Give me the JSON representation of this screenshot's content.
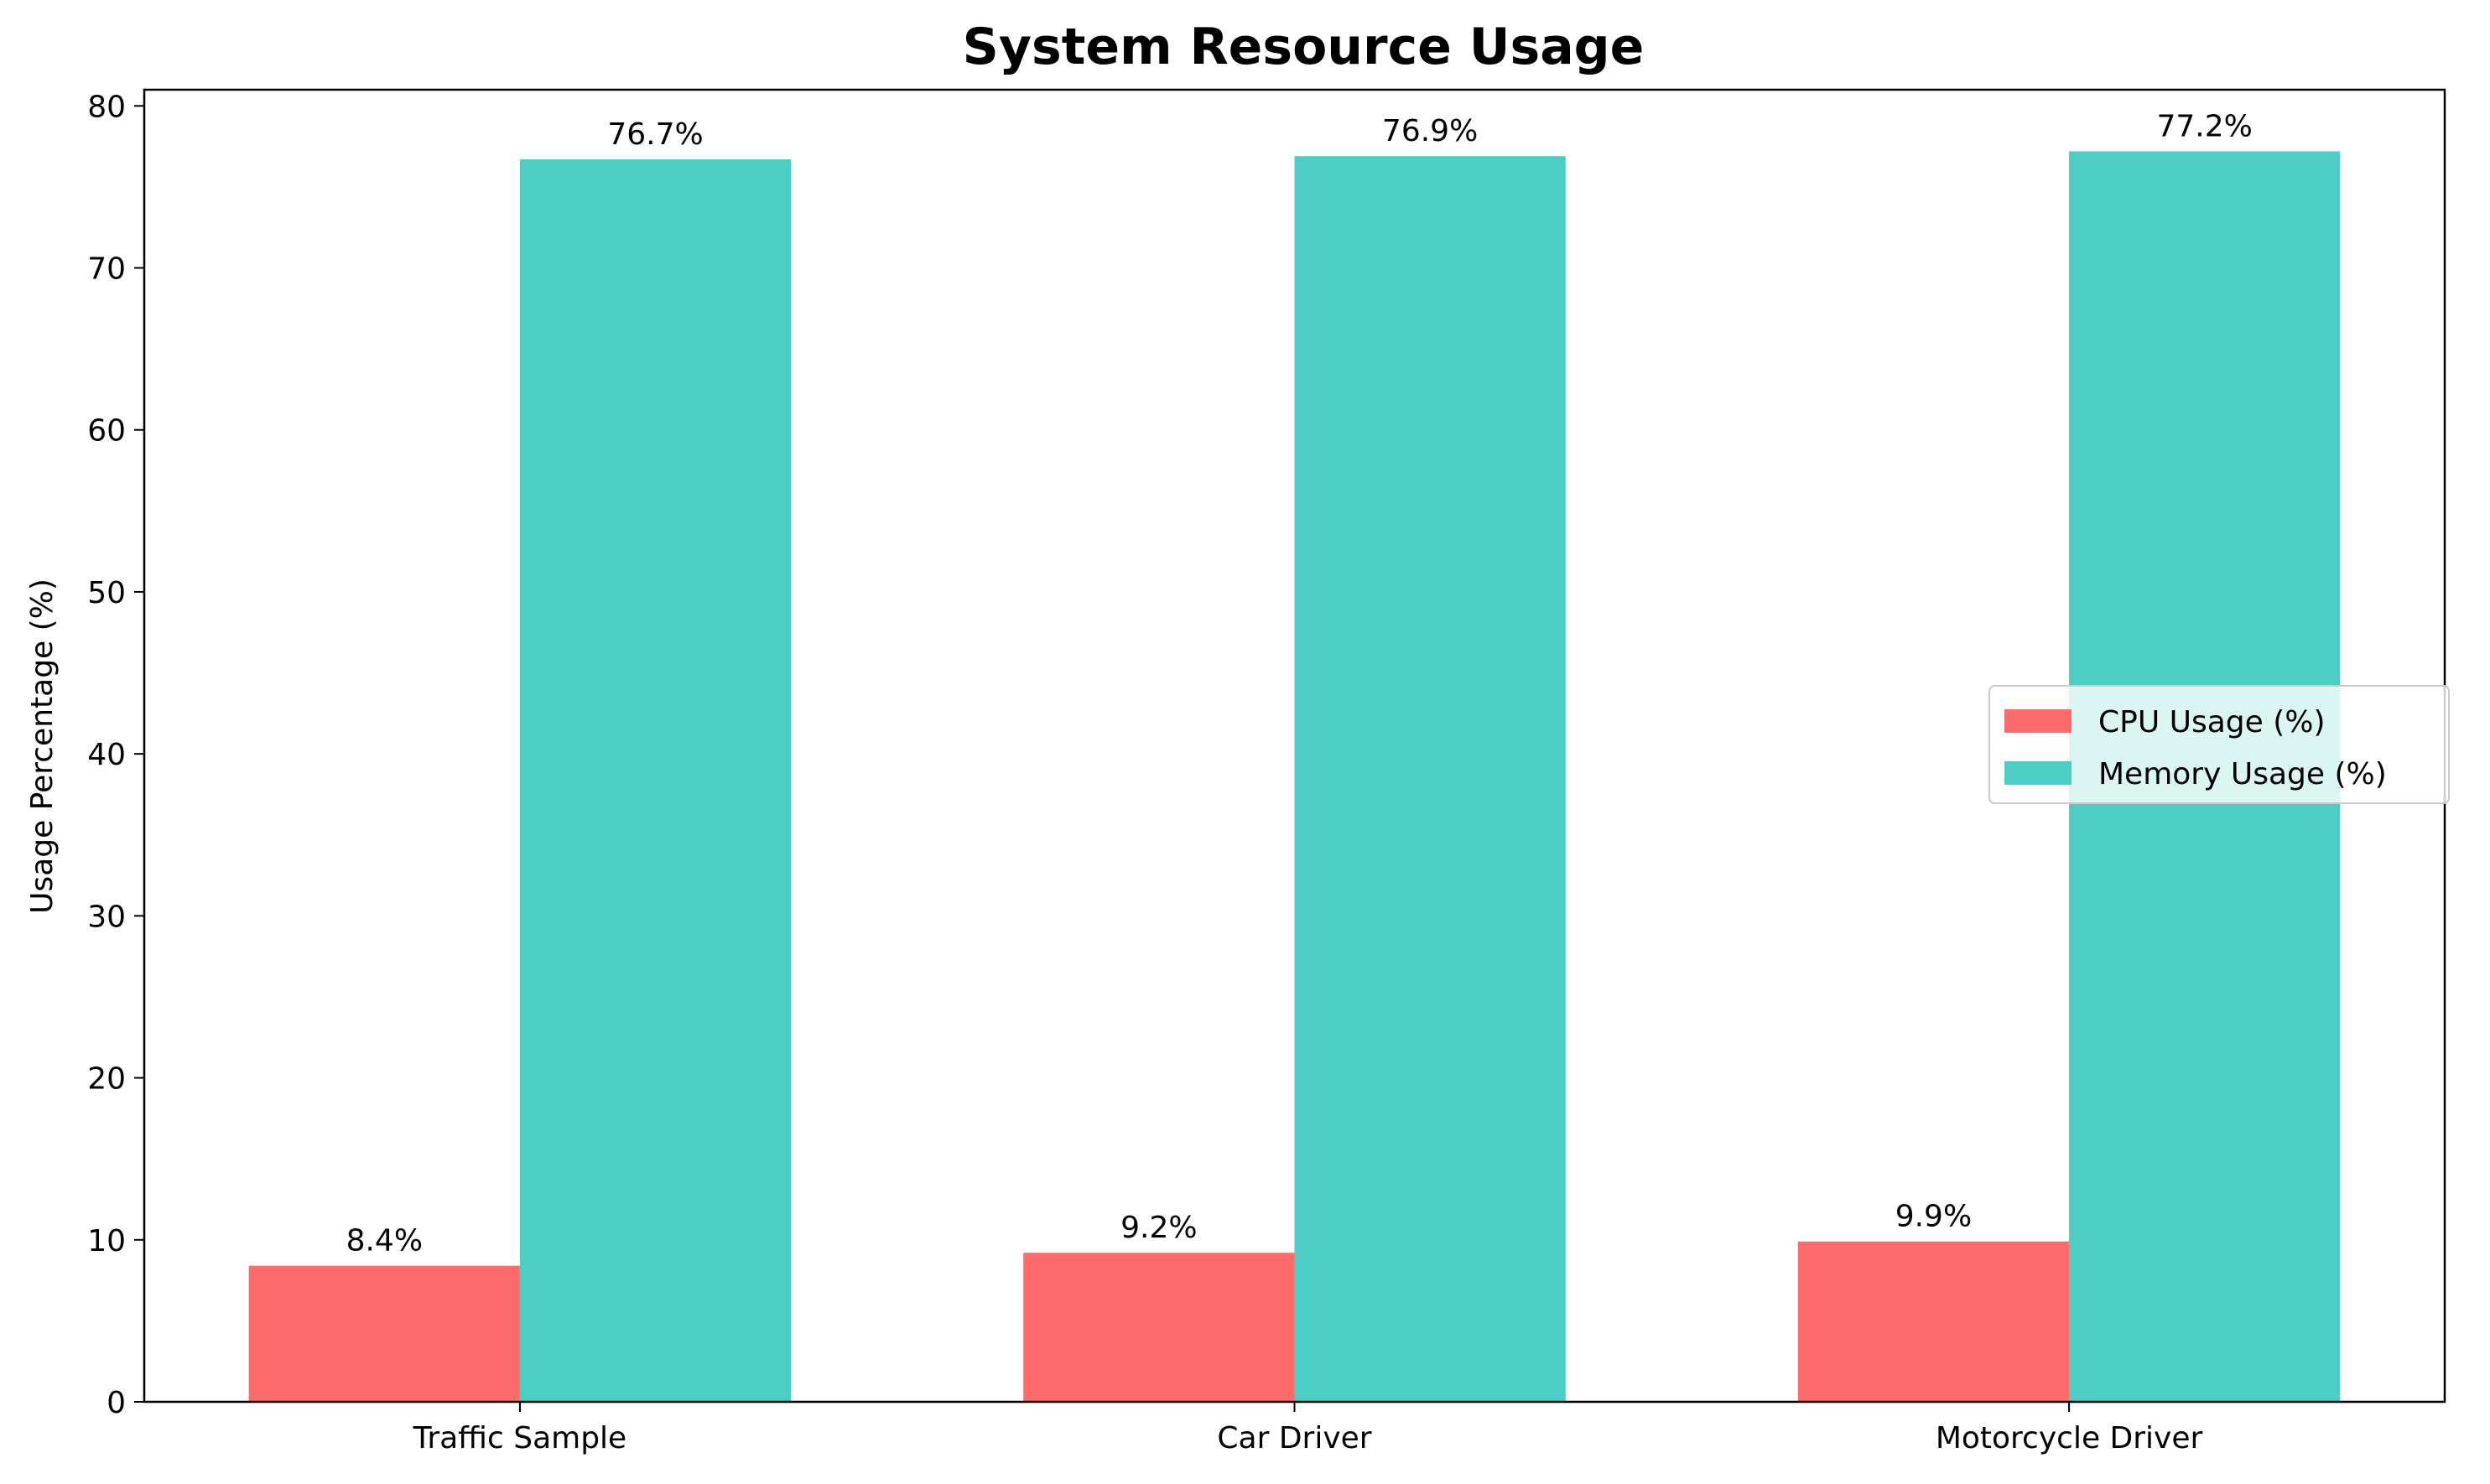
{
  "chart_data": {
    "type": "bar",
    "title": "System Resource Usage",
    "xlabel": "",
    "ylabel": "Usage Percentage (%)",
    "ylim": [
      0,
      81
    ],
    "yticks": [
      0,
      10,
      20,
      30,
      40,
      50,
      60,
      70,
      80
    ],
    "categories": [
      "Traffic Sample",
      "Car Driver",
      "Motorcycle Driver"
    ],
    "series": [
      {
        "name": "CPU Usage (%)",
        "values": [
          8.4,
          9.2,
          9.9
        ],
        "labels": [
          "8.4%",
          "9.2%",
          "9.9%"
        ],
        "color": "#ff6b6b"
      },
      {
        "name": "Memory Usage (%)",
        "values": [
          76.7,
          76.9,
          77.2
        ],
        "labels": [
          "76.7%",
          "76.9%",
          "77.2%"
        ],
        "color": "#4ecdc4"
      }
    ],
    "grid": false,
    "legend_position": "center-right"
  }
}
